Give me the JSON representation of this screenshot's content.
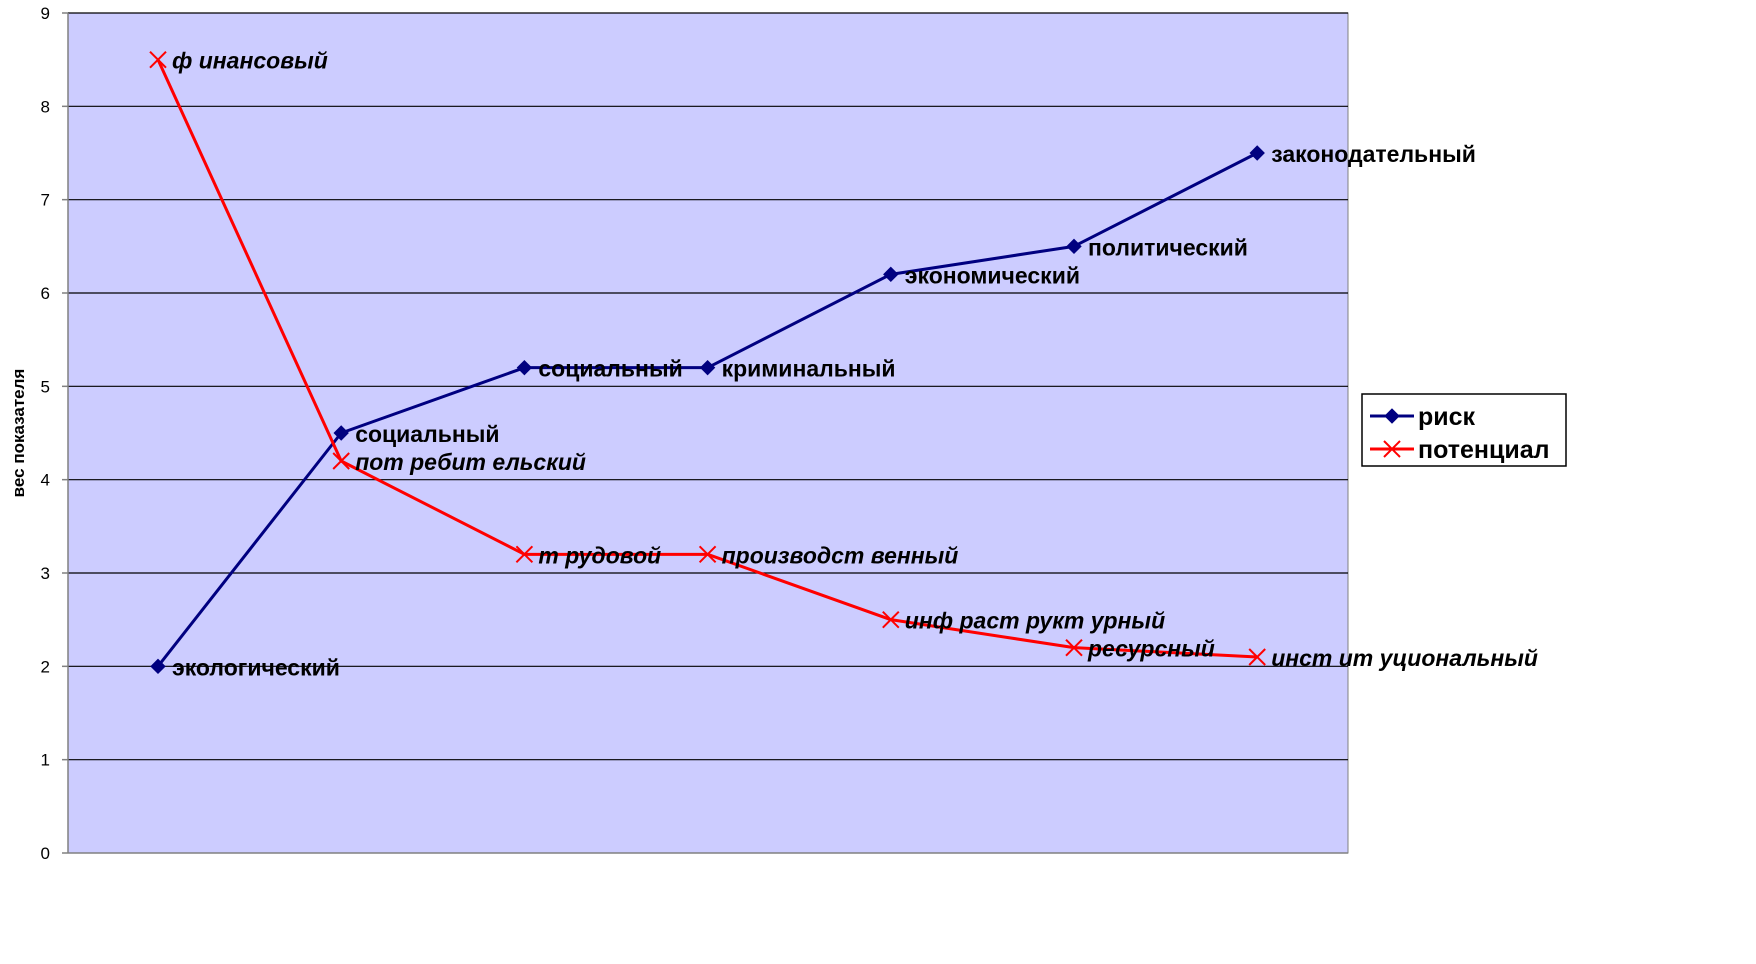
{
  "chart_data": {
    "type": "line",
    "ylabel": "вес показателя",
    "xlabel": "",
    "ylim": [
      0,
      9
    ],
    "yticks": [
      0,
      1,
      2,
      3,
      4,
      5,
      6,
      7,
      8,
      9
    ],
    "grid": true,
    "legend_position": "right",
    "x": [
      1,
      2,
      3,
      4,
      5,
      6,
      7
    ],
    "plot_background": "#ccccff",
    "series": [
      {
        "name": "риск",
        "color": "#000080",
        "marker": "diamond",
        "italic": false,
        "values": [
          2,
          4.5,
          5.2,
          5.2,
          6.2,
          6.5,
          7.5
        ],
        "labels": [
          "экологический",
          "социальный",
          "социальный",
          "криминальный",
          "экономический",
          "политический",
          "законодательный"
        ]
      },
      {
        "name": "потенциал",
        "color": "#ff0000",
        "marker": "x",
        "italic": true,
        "values": [
          8.5,
          4.2,
          3.2,
          3.2,
          2.5,
          2.2,
          2.1
        ],
        "labels": [
          "ф инансовый",
          "пот ребит ельский",
          "т рудовой",
          "производст венный",
          "инф раст рукт урный",
          "ресурсный",
          "инст ит уциональный"
        ]
      }
    ]
  }
}
